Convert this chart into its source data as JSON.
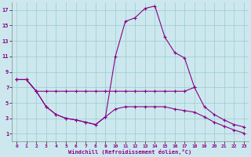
{
  "xlabel": "Windchill (Refroidissement éolien,°C)",
  "bg_color": "#cce8ee",
  "line_color": "#880088",
  "grid_color": "#99cccc",
  "line1_x": [
    0,
    1,
    2,
    3,
    4,
    5,
    6,
    7,
    8,
    9,
    10,
    11,
    12,
    13,
    14,
    15,
    16,
    17,
    18
  ],
  "line1_y": [
    8,
    8,
    6.5,
    4.5,
    3.5,
    3.0,
    2.8,
    2.5,
    2.2,
    3.2,
    11,
    15.5,
    16,
    17.2,
    17.5,
    13.5,
    11.5,
    10.8,
    7.0
  ],
  "line2_x": [
    0,
    1,
    2,
    3,
    4,
    5,
    6,
    7,
    8,
    9,
    10,
    11,
    12,
    13,
    14,
    15,
    16,
    17,
    18,
    19,
    20,
    21,
    22,
    23
  ],
  "line2_y": [
    8,
    8,
    6.5,
    6.5,
    6.5,
    6.5,
    6.5,
    6.5,
    6.5,
    6.5,
    6.5,
    6.5,
    6.5,
    6.5,
    6.5,
    6.5,
    6.5,
    6.5,
    7.0,
    4.5,
    3.5,
    2.8,
    2.2,
    1.9
  ],
  "line3_x": [
    0,
    1,
    2,
    3,
    4,
    5,
    6,
    7,
    8,
    9,
    10,
    11,
    12,
    13,
    14,
    15,
    16,
    17,
    18,
    19,
    20,
    21,
    22,
    23
  ],
  "line3_y": [
    8,
    8,
    6.5,
    4.5,
    3.5,
    3.0,
    2.8,
    2.5,
    2.2,
    3.2,
    4.2,
    4.5,
    4.5,
    4.5,
    4.5,
    4.5,
    4.2,
    4.0,
    3.8,
    3.2,
    2.5,
    2.0,
    1.5,
    1.1
  ],
  "xlim": [
    -0.5,
    23.5
  ],
  "ylim": [
    0,
    18
  ],
  "xticks": [
    0,
    1,
    2,
    3,
    4,
    5,
    6,
    7,
    8,
    9,
    10,
    11,
    12,
    13,
    14,
    15,
    16,
    17,
    18,
    19,
    20,
    21,
    22,
    23
  ],
  "yticks": [
    1,
    3,
    5,
    7,
    9,
    11,
    13,
    15,
    17
  ]
}
